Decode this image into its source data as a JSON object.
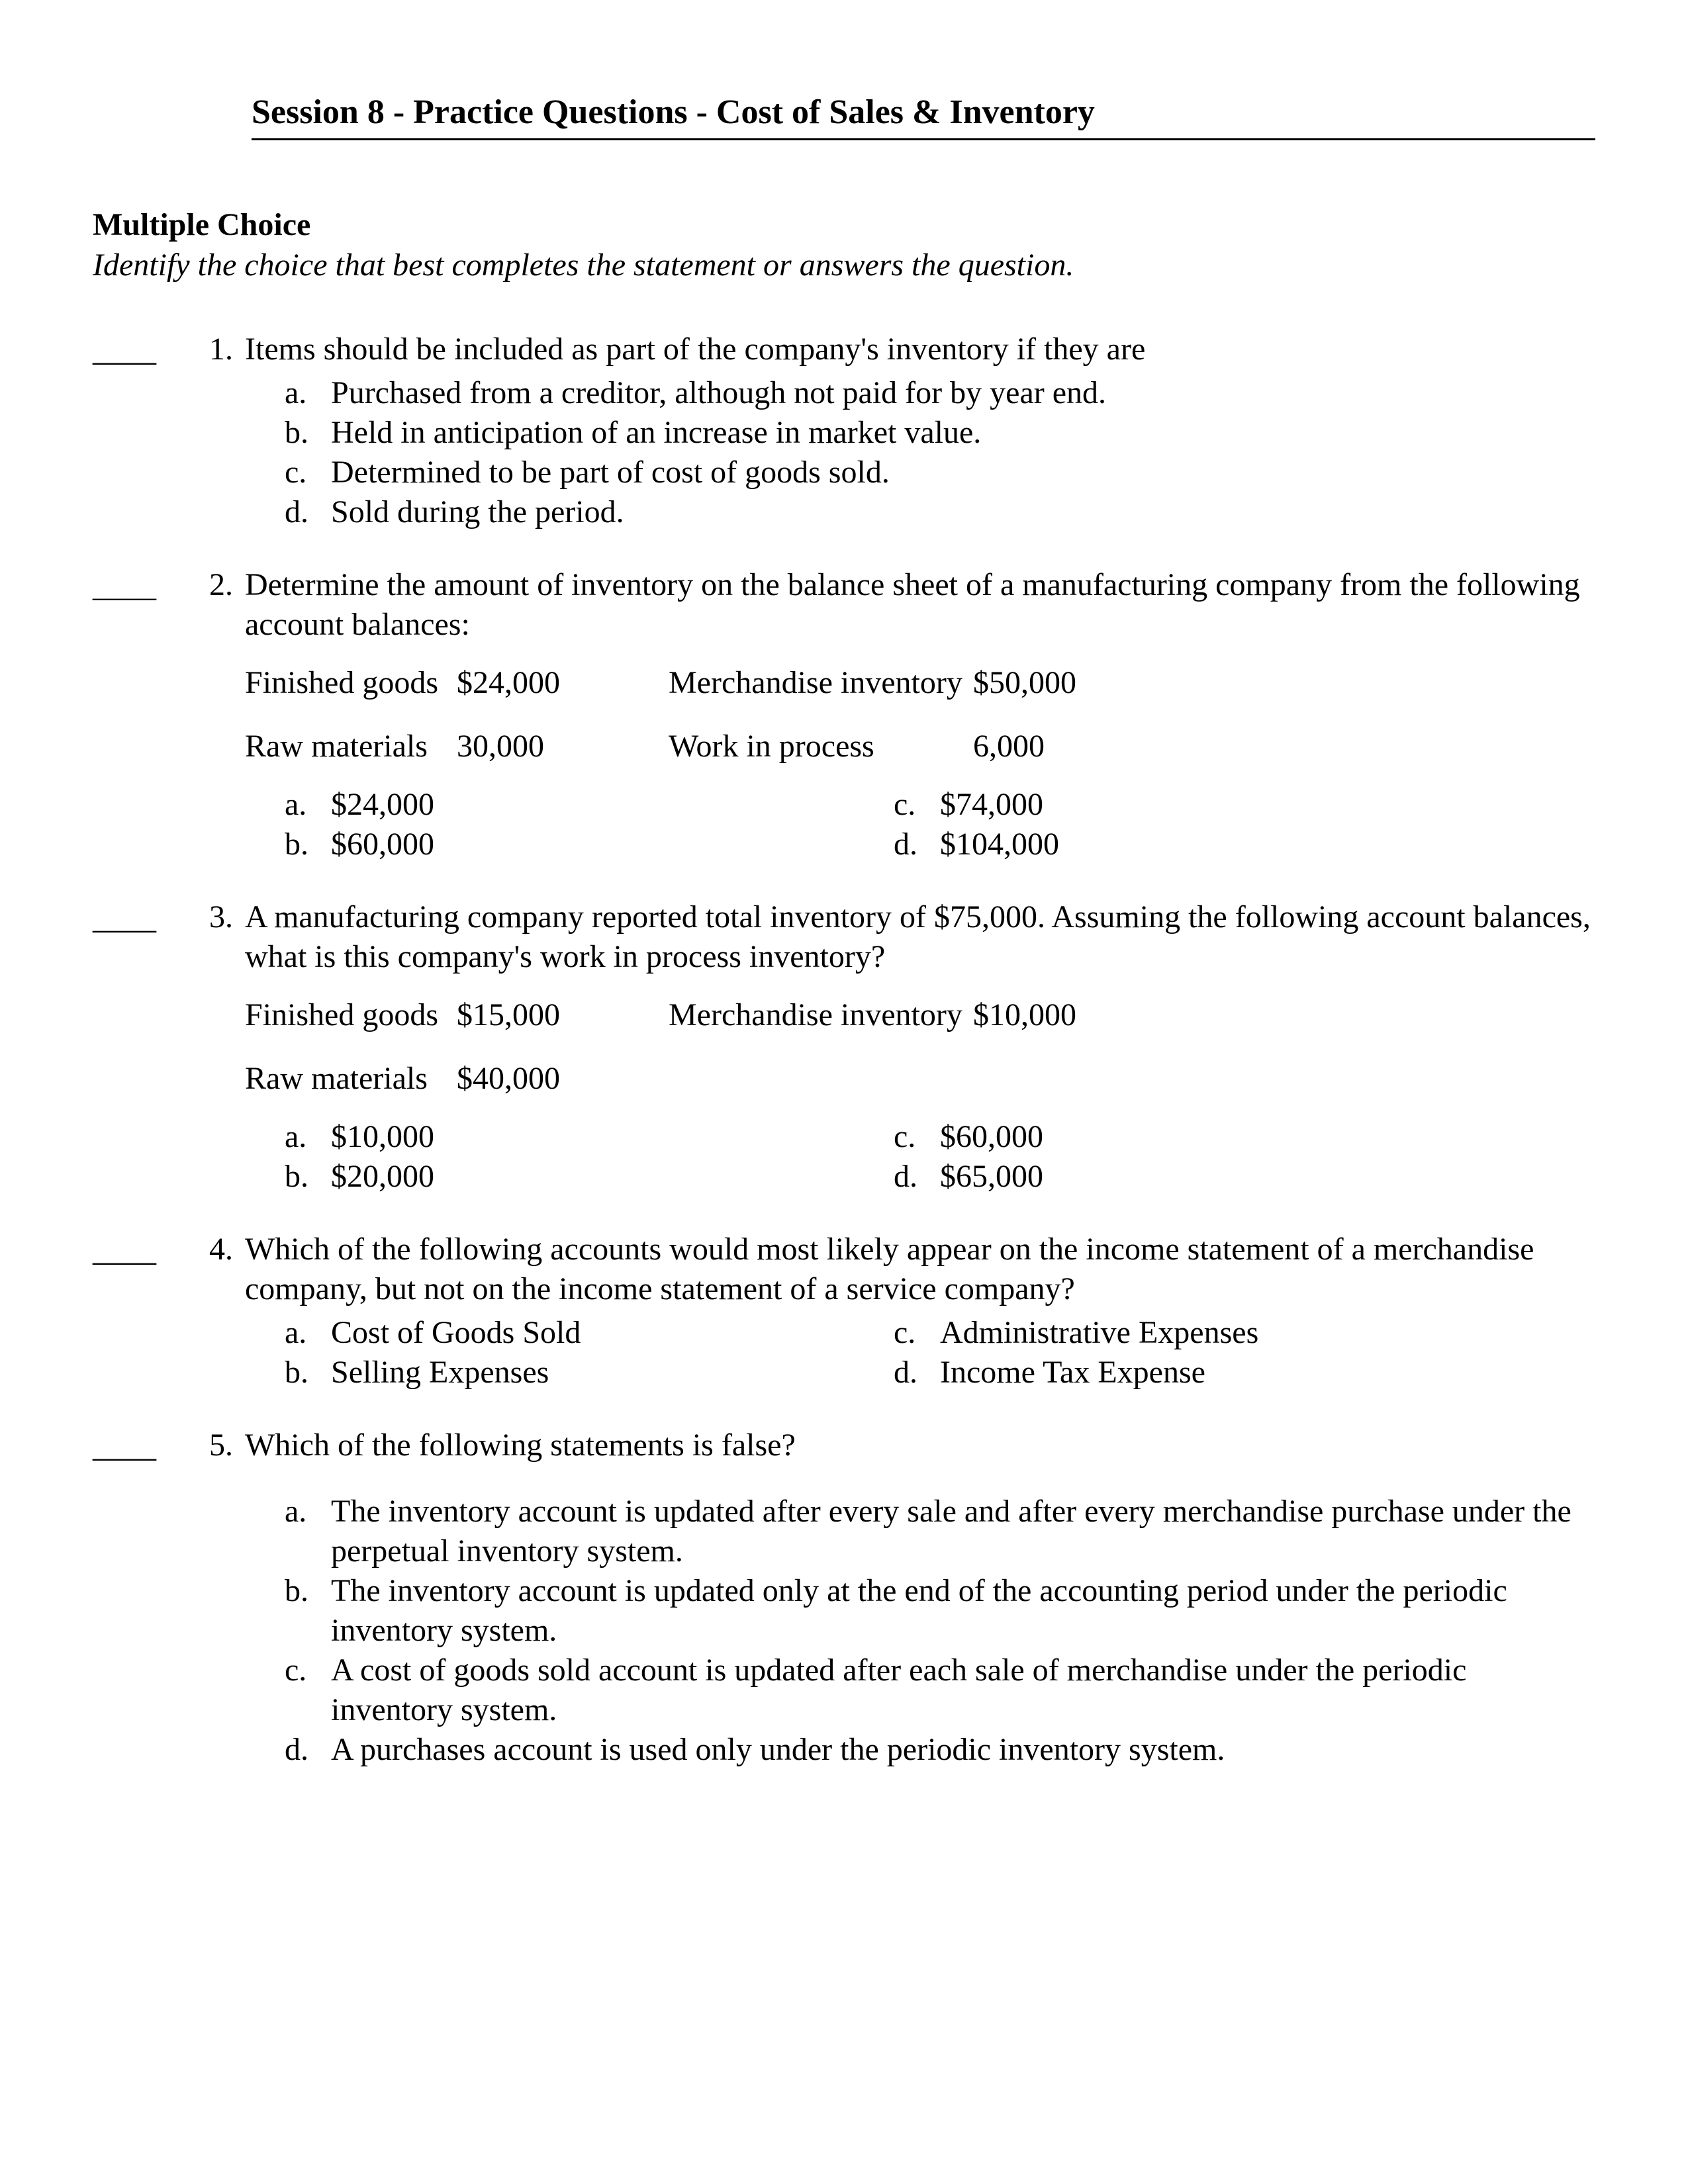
{
  "header": {
    "title": "Session 8 - Practice Questions - Cost of Sales & Inventory"
  },
  "section": {
    "heading": "Multiple Choice",
    "sub": "Identify the choice that best completes the statement or answers the question."
  },
  "blank": "____",
  "questions": [
    {
      "num": "1.",
      "stem": "Items should be included as part of the company's inventory if they are",
      "layout": "single",
      "options": [
        {
          "letter": "a.",
          "text": "Purchased from a creditor, although not paid for by year end."
        },
        {
          "letter": "b.",
          "text": "Held in anticipation of an increase in market value."
        },
        {
          "letter": "c.",
          "text": "Determined to be part of cost of goods sold."
        },
        {
          "letter": "d.",
          "text": "Sold during the period."
        }
      ]
    },
    {
      "num": "2.",
      "stem": "Determine the amount of inventory on the balance sheet of a manufacturing company from the following account balances:",
      "data": [
        {
          "l1": "Finished goods",
          "v1": "$24,000",
          "l2": "Merchandise inventory",
          "v2": "$50,000"
        },
        {
          "l1": "Raw materials",
          "v1": "30,000",
          "l2": "Work in process",
          "v2": "6,000"
        }
      ],
      "layout": "twocol",
      "options_left": [
        {
          "letter": "a.",
          "text": "$24,000"
        },
        {
          "letter": "b.",
          "text": "$60,000"
        }
      ],
      "options_right": [
        {
          "letter": "c.",
          "text": "$74,000"
        },
        {
          "letter": "d.",
          "text": "$104,000"
        }
      ]
    },
    {
      "num": "3.",
      "stem": "A manufacturing company reported total inventory of $75,000.  Assuming the following account balances, what is this company's work in process inventory?",
      "data": [
        {
          "l1": "Finished goods",
          "v1": "$15,000",
          "l2": "Merchandise inventory",
          "v2": "$10,000"
        },
        {
          "l1": "Raw materials",
          "v1": "$40,000",
          "l2": "",
          "v2": ""
        }
      ],
      "layout": "twocol",
      "options_left": [
        {
          "letter": "a.",
          "text": "$10,000"
        },
        {
          "letter": "b.",
          "text": "$20,000"
        }
      ],
      "options_right": [
        {
          "letter": "c.",
          "text": "$60,000"
        },
        {
          "letter": "d.",
          "text": "$65,000"
        }
      ]
    },
    {
      "num": "4.",
      "stem": "Which of the following accounts would most likely appear on the income statement of a merchandise company, but not on the income statement of a service company?",
      "layout": "twocol",
      "options_left": [
        {
          "letter": "a.",
          "text": "Cost of Goods Sold"
        },
        {
          "letter": "b.",
          "text": "Selling Expenses"
        }
      ],
      "options_right": [
        {
          "letter": "c.",
          "text": "Administrative Expenses"
        },
        {
          "letter": "d.",
          "text": "Income Tax Expense"
        }
      ]
    },
    {
      "num": "5.",
      "stem": "Which of the following statements is false?",
      "layout": "single",
      "stem_gap": true,
      "options": [
        {
          "letter": "a.",
          "text": "The inventory account is updated after every sale and after every merchandise purchase under the perpetual inventory system."
        },
        {
          "letter": "b.",
          "text": "The inventory account is updated only at the end of the accounting period under the periodic inventory system."
        },
        {
          "letter": "c.",
          "text": "A cost of goods sold account is updated after each sale of merchandise under the periodic inventory system."
        },
        {
          "letter": "d.",
          "text": "A purchases account is used only under the periodic inventory system."
        }
      ]
    }
  ]
}
